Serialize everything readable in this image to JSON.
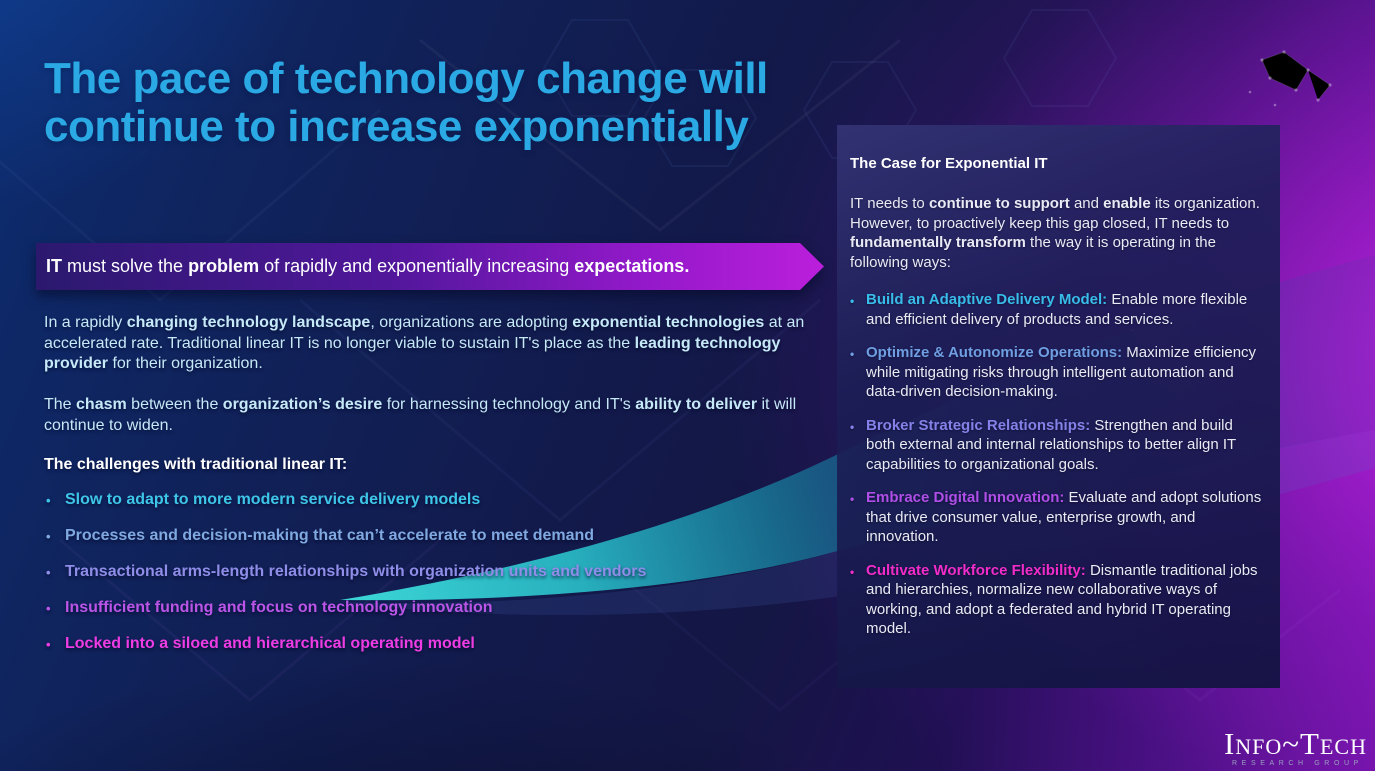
{
  "theme": {
    "colors": {
      "title_color": "#2aa9e4",
      "body_color": "#c6e9f8",
      "panel_text_color": "#e9eaf4",
      "swoosh_teal": "#3fe2de",
      "banner_gradient_start": "#2b196e",
      "banner_gradient_end": "#bb1fdc",
      "background_magenta": "#b321d6",
      "background_navy": "#121b4d"
    },
    "bullet_char": "•"
  },
  "slide": {
    "title": "The pace of technology change will continue to increase exponentially",
    "banner_segments": [
      {
        "t": "IT",
        "b": 1
      },
      {
        "t": " must solve the ",
        "b": 0
      },
      {
        "t": "problem",
        "b": 1
      },
      {
        "t": " of rapidly and exponentially increasing ",
        "b": 0
      },
      {
        "t": "expectations.",
        "b": 1
      }
    ],
    "intro_paragraphs": [
      {
        "segments": [
          {
            "t": "In a rapidly ",
            "b": 0
          },
          {
            "t": "changing technology landscape",
            "b": 1
          },
          {
            "t": ", organizations are adopting ",
            "b": 0
          },
          {
            "t": "exponential technologies",
            "b": 1
          },
          {
            "t": " at an accelerated rate. Traditional linear IT is no longer viable to sustain IT's place as the ",
            "b": 0
          },
          {
            "t": "leading technology provider",
            "b": 1
          },
          {
            "t": " for their organization.",
            "b": 0
          }
        ]
      },
      {
        "segments": [
          {
            "t": "The ",
            "b": 0
          },
          {
            "t": "chasm",
            "b": 1
          },
          {
            "t": " between the ",
            "b": 0
          },
          {
            "t": "organization’s desire",
            "b": 1
          },
          {
            "t": " for harnessing technology and IT's ",
            "b": 0
          },
          {
            "t": "ability to deliver",
            "b": 1
          },
          {
            "t": " it will continue to widen.",
            "b": 0
          }
        ]
      }
    ],
    "challenges": {
      "heading": "The challenges with traditional linear IT:",
      "items": [
        {
          "text": "Slow to adapt to more modern service delivery models",
          "color": "#3ec6e8"
        },
        {
          "text": "Processes and decision-making that can’t accelerate to meet demand",
          "color": "#7fa9e0"
        },
        {
          "text": "Transactional arms-length relationships with organization units and vendors",
          "color": "#8f8de8"
        },
        {
          "text": "Insufficient funding and focus on technology innovation",
          "color": "#bb55e8"
        },
        {
          "text": "Locked into a siloed and hierarchical operating model",
          "color": "#ee3ce4"
        }
      ]
    }
  },
  "panel": {
    "heading": "The Case for Exponential IT",
    "intro_segments": [
      {
        "t": "IT needs to ",
        "b": 0
      },
      {
        "t": "continue to support",
        "b": 1
      },
      {
        "t": " and ",
        "b": 0
      },
      {
        "t": "enable",
        "b": 1
      },
      {
        "t": " its organization. However, to proactively keep this gap closed, IT needs to ",
        "b": 0
      },
      {
        "t": "fundamentally transform",
        "b": 1
      },
      {
        "t": " the way it is operating in the following ways:",
        "b": 0
      }
    ],
    "items": [
      {
        "lead": "Build an Adaptive Delivery Model:",
        "color": "#38bce8",
        "text": "Enable more flexible and efficient delivery of products and services."
      },
      {
        "lead": "Optimize & Autonomize Operations:",
        "color": "#6f9fe2",
        "text": "Maximize efficiency while mitigating risks through intelligent automation and data-driven decision-making."
      },
      {
        "lead": "Broker Strategic Relationships:",
        "color": "#8481e8",
        "text": "Strengthen and build both external and internal relationships to better align IT capabilities to organizational goals."
      },
      {
        "lead": "Embrace Digital Innovation:",
        "color": "#b04ee8",
        "text": "Evaluate and adopt solutions that drive consumer value, enterprise growth, and innovation."
      },
      {
        "lead": "Cultivate Workforce Flexibility:",
        "color": "#f12cc9",
        "text": "Dismantle traditional jobs and hierarchies, normalize new collaborative ways of working, and adopt a federated and hybrid IT operating model."
      }
    ]
  },
  "logo": {
    "name": "Info~Tech",
    "sub": "RESEARCH GROUP"
  }
}
